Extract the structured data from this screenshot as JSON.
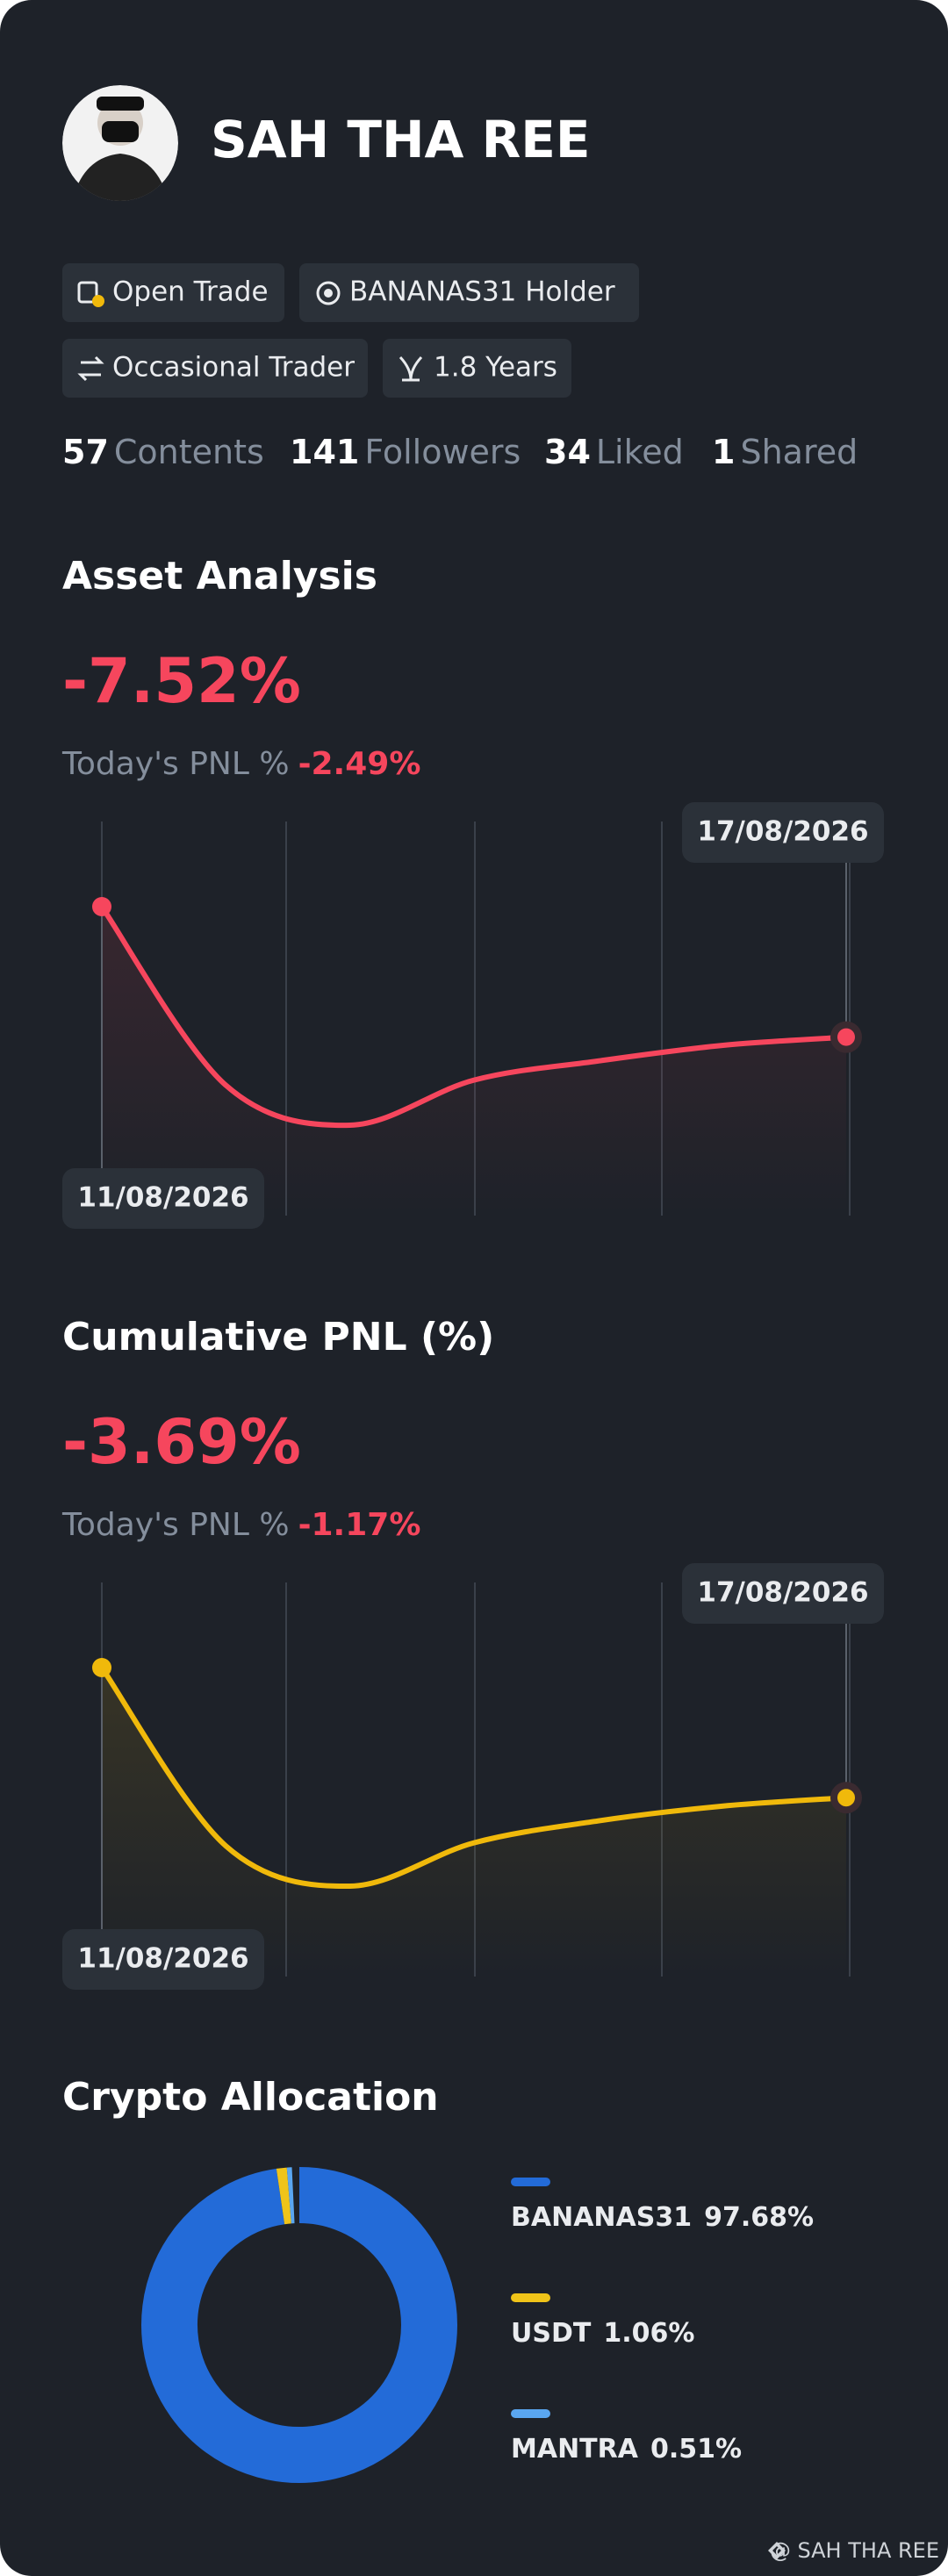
{
  "profile": {
    "name": "SAH THA REE",
    "tags": [
      "Open Trade",
      "BANANAS31 Holder",
      "Occasional Trader",
      "1.8 Years"
    ],
    "stats": [
      {
        "value": 57,
        "label": "Contents"
      },
      {
        "value": 141,
        "label": "Followers"
      },
      {
        "value": 34,
        "label": "Liked"
      },
      {
        "value": 1,
        "label": "Shared"
      }
    ]
  },
  "chart_data": [
    {
      "type": "line",
      "title": "Asset Analysis",
      "total": "-7.52%",
      "pnl_label": "Today's PNL %",
      "pnl_value": "-2.49%",
      "categories": [
        "11/08/2026",
        null,
        null,
        null,
        null,
        null,
        "17/08/2026"
      ],
      "values": [
        0,
        -10.3,
        -12.6,
        -10.0,
        -8.9,
        -8.0,
        -7.52
      ],
      "color": "#f6465d"
    },
    {
      "type": "line",
      "title": "Cumulative PNL (%)",
      "total": "-3.69%",
      "pnl_label": "Today's PNL %",
      "pnl_value": "-1.17%",
      "categories": [
        "11/08/2026",
        null,
        null,
        null,
        null,
        null,
        "17/08/2026"
      ],
      "values": [
        0,
        -5.06,
        -6.2,
        -4.97,
        -4.35,
        -3.93,
        -3.69
      ],
      "color": "#f0b90b"
    },
    {
      "type": "donut",
      "title": "Crypto Allocation",
      "categories": [
        "BANANAS31",
        "USDT",
        "MANTRA"
      ],
      "values": [
        97.68,
        1.06,
        0.51
      ],
      "value_labels": [
        "97.68%",
        "1.06%",
        "0.51%"
      ],
      "colors": [
        "#236bd8",
        "#f0c419",
        "#5aa6f0"
      ]
    }
  ],
  "footer": "@ SAH THA REE"
}
